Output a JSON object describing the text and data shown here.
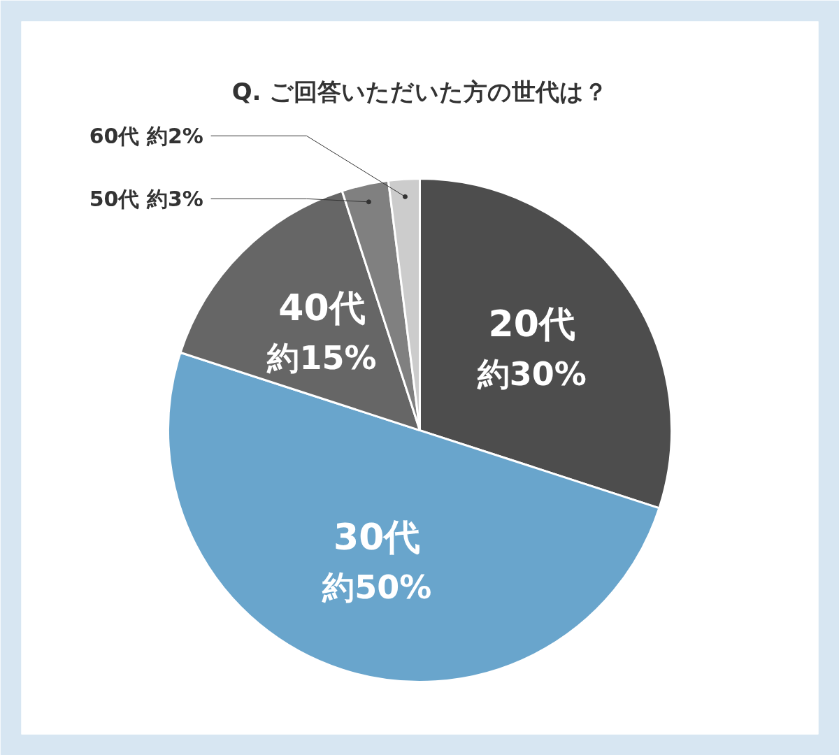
{
  "chart_data": {
    "type": "pie",
    "title": "Q. ご回答いただいた方の世代は？",
    "categories": [
      "20代",
      "30代",
      "40代",
      "50代",
      "60代"
    ],
    "values": [
      30,
      50,
      15,
      3,
      2
    ],
    "value_labels": [
      "約30%",
      "約50%",
      "約15%",
      "約3%",
      "約2%"
    ],
    "colors": [
      "#4d4d4d",
      "#69a5cc",
      "#666666",
      "#808080",
      "#cccccc"
    ]
  }
}
